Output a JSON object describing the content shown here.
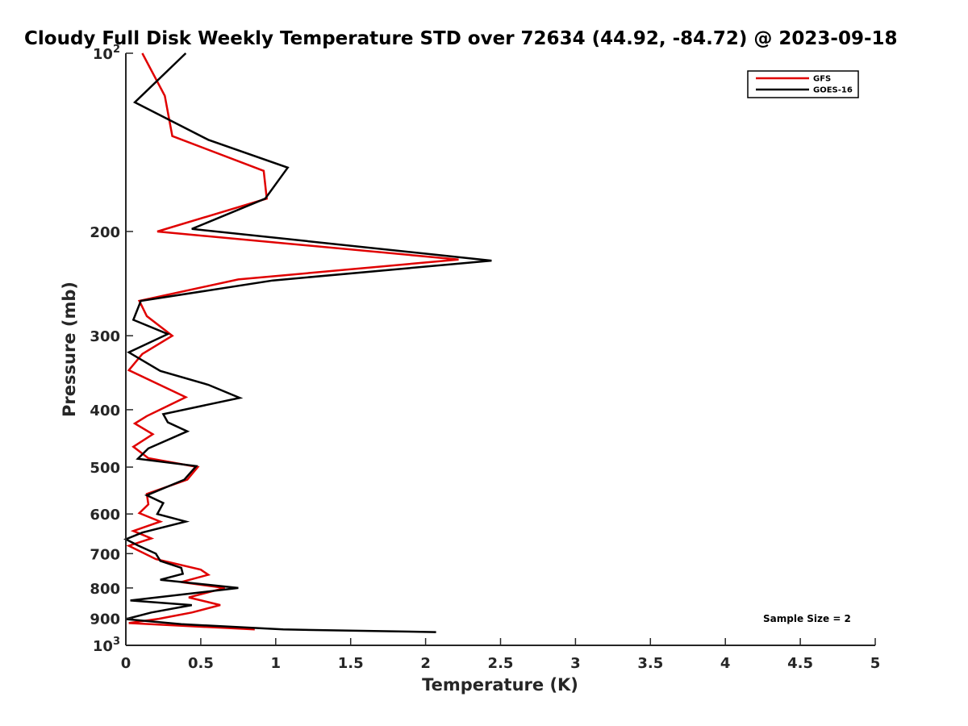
{
  "chart_data": {
    "type": "line",
    "title": "Cloudy Full Disk Weekly Temperature STD over 72634 (44.92, -84.72) @ 2023-09-18",
    "xlabel": "Temperature (K)",
    "ylabel": "Pressure (mb)",
    "xlim": [
      0,
      5
    ],
    "ylim": [
      100,
      1000
    ],
    "y_scale": "log",
    "y_reversed": true,
    "x_ticks": [
      "0",
      "0.5",
      "1",
      "1.5",
      "2",
      "2.5",
      "3",
      "3.5",
      "4",
      "4.5",
      "5"
    ],
    "y_ticks": [
      {
        "value": 100,
        "base": "10",
        "exp": "2"
      },
      {
        "value": 200,
        "label": "200"
      },
      {
        "value": 300,
        "label": "300"
      },
      {
        "value": 400,
        "label": "400"
      },
      {
        "value": 500,
        "label": "500"
      },
      {
        "value": 600,
        "label": "600"
      },
      {
        "value": 700,
        "label": "700"
      },
      {
        "value": 800,
        "label": "800"
      },
      {
        "value": 900,
        "label": "900"
      },
      {
        "value": 1000,
        "base": "10",
        "exp": "3"
      }
    ],
    "legend_position": "top-right",
    "grid": false,
    "annotation": "Sample Size = 2",
    "series": [
      {
        "name": "GFS",
        "color": "#e00000",
        "points": [
          [
            0.11,
            100
          ],
          [
            0.26,
            118
          ],
          [
            0.31,
            138
          ],
          [
            0.92,
            158
          ],
          [
            0.94,
            176
          ],
          [
            0.21,
            200
          ],
          [
            2.22,
            223
          ],
          [
            0.75,
            241
          ],
          [
            0.09,
            262
          ],
          [
            0.14,
            278
          ],
          [
            0.31,
            300
          ],
          [
            0.11,
            322
          ],
          [
            0.02,
            343
          ],
          [
            0.4,
            381
          ],
          [
            0.14,
            410
          ],
          [
            0.06,
            422
          ],
          [
            0.18,
            440
          ],
          [
            0.05,
            462
          ],
          [
            0.15,
            483
          ],
          [
            0.48,
            500
          ],
          [
            0.41,
            525
          ],
          [
            0.14,
            555
          ],
          [
            0.15,
            578
          ],
          [
            0.09,
            598
          ],
          [
            0.23,
            618
          ],
          [
            0.05,
            641
          ],
          [
            0.17,
            660
          ],
          [
            0.02,
            679
          ],
          [
            0.2,
            715
          ],
          [
            0.5,
            745
          ],
          [
            0.55,
            760
          ],
          [
            0.37,
            782
          ],
          [
            0.66,
            800
          ],
          [
            0.42,
            830
          ],
          [
            0.63,
            855
          ],
          [
            0.44,
            880
          ],
          [
            0.22,
            902
          ],
          [
            0.02,
            917
          ],
          [
            0.86,
            940
          ]
        ]
      },
      {
        "name": "GOES-16",
        "color": "#000000",
        "points": [
          [
            0.4,
            100
          ],
          [
            0.06,
            121
          ],
          [
            0.55,
            140
          ],
          [
            1.08,
            156
          ],
          [
            0.93,
            176
          ],
          [
            0.44,
            198
          ],
          [
            2.44,
            224
          ],
          [
            0.98,
            242
          ],
          [
            0.1,
            262
          ],
          [
            0.05,
            282
          ],
          [
            0.28,
            298
          ],
          [
            0.02,
            320
          ],
          [
            0.23,
            344
          ],
          [
            0.55,
            363
          ],
          [
            0.76,
            382
          ],
          [
            0.25,
            407
          ],
          [
            0.28,
            420
          ],
          [
            0.41,
            435
          ],
          [
            0.15,
            465
          ],
          [
            0.08,
            484
          ],
          [
            0.47,
            498
          ],
          [
            0.39,
            525
          ],
          [
            0.14,
            558
          ],
          [
            0.25,
            575
          ],
          [
            0.21,
            600
          ],
          [
            0.4,
            618
          ],
          [
            0.11,
            645
          ],
          [
            0.0,
            662
          ],
          [
            0.08,
            678
          ],
          [
            0.2,
            700
          ],
          [
            0.23,
            720
          ],
          [
            0.37,
            740
          ],
          [
            0.38,
            757
          ],
          [
            0.23,
            775
          ],
          [
            0.75,
            800
          ],
          [
            0.03,
            840
          ],
          [
            0.44,
            855
          ],
          [
            0.17,
            880
          ],
          [
            0.0,
            903
          ],
          [
            0.37,
            921
          ],
          [
            1.05,
            940
          ],
          [
            2.07,
            950
          ]
        ]
      }
    ]
  }
}
